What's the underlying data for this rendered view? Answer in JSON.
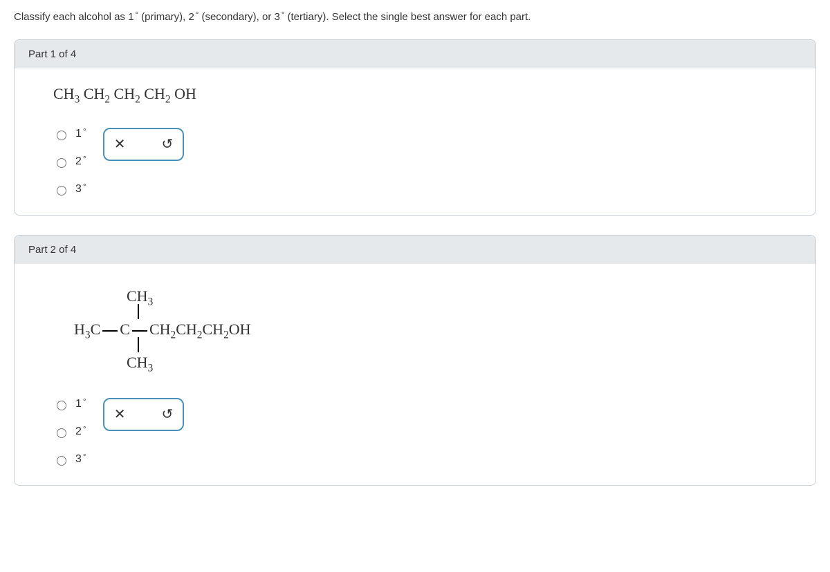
{
  "question": {
    "prefix": "Classify each alcohol as ",
    "p1": "1",
    "p1_label": "(primary), ",
    "p2": "2",
    "p2_label": "(secondary), or ",
    "p3": "3",
    "p3_label": "(tertiary). Select the single best answer for each part."
  },
  "parts": {
    "part1": {
      "header": "Part 1 of 4",
      "formula_segments": [
        "CH",
        "3",
        " CH",
        "2",
        " CH",
        "2",
        " CH",
        "2",
        " OH"
      ],
      "options": [
        "1",
        "2",
        "3"
      ],
      "feedback": {
        "status": "incorrect",
        "undo": true
      }
    },
    "part2": {
      "header": "Part 2 of 4",
      "options": [
        "1",
        "2",
        "3"
      ],
      "feedback": {
        "status": "incorrect",
        "undo": true
      },
      "formula": {
        "top": "CH",
        "top_sub": "3",
        "mid_left": "H",
        "mid_left_sub": "3",
        "mid_left2": "C",
        "mid_c": "C",
        "mid_right_segments": [
          "CH",
          "2",
          "CH",
          "2",
          "CH",
          "2",
          "OH"
        ],
        "bot": "CH",
        "bot_sub": "3"
      }
    }
  },
  "icons": {
    "x": "✕",
    "undo": "↺"
  },
  "degree": "°"
}
